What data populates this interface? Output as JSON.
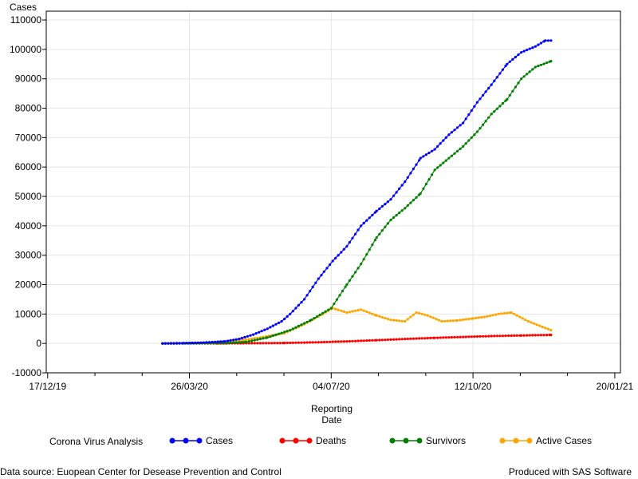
{
  "chart_data": {
    "type": "line",
    "ylabel": "Cases",
    "xlabel_lines": [
      "Reporting",
      "Date"
    ],
    "ylim": [
      -10000,
      113000
    ],
    "xlim": [
      "2019-12-16",
      "2021-01-24"
    ],
    "x_ticks": [
      {
        "date": "2019-12-17",
        "label": "17/12/19"
      },
      {
        "date": "2020-03-26",
        "label": "26/03/20"
      },
      {
        "date": "2020-07-04",
        "label": "04/07/20"
      },
      {
        "date": "2020-10-12",
        "label": "12/10/20"
      },
      {
        "date": "2021-01-20",
        "label": "20/01/21"
      }
    ],
    "y_ticks": [
      -10000,
      0,
      10000,
      20000,
      30000,
      40000,
      50000,
      60000,
      70000,
      80000,
      90000,
      100000,
      110000
    ],
    "grid": true,
    "legend_position": "bottom",
    "legend_title": "Corona Virus Analysis",
    "series": [
      {
        "name": "Cases",
        "color": "#0000ff",
        "points": [
          [
            "2020-03-07",
            0
          ],
          [
            "2020-03-22",
            100
          ],
          [
            "2020-04-05",
            300
          ],
          [
            "2020-04-20",
            700
          ],
          [
            "2020-04-30",
            1500
          ],
          [
            "2020-05-10",
            3000
          ],
          [
            "2020-05-20",
            5000
          ],
          [
            "2020-05-30",
            7500
          ],
          [
            "2020-06-05",
            10000
          ],
          [
            "2020-06-15",
            15000
          ],
          [
            "2020-06-25",
            22000
          ],
          [
            "2020-07-05",
            28000
          ],
          [
            "2020-07-15",
            33000
          ],
          [
            "2020-07-25",
            40000
          ],
          [
            "2020-08-05",
            45000
          ],
          [
            "2020-08-15",
            49000
          ],
          [
            "2020-08-25",
            55000
          ],
          [
            "2020-09-05",
            63000
          ],
          [
            "2020-09-15",
            66000
          ],
          [
            "2020-09-25",
            71000
          ],
          [
            "2020-10-05",
            75000
          ],
          [
            "2020-10-15",
            82000
          ],
          [
            "2020-10-25",
            88000
          ],
          [
            "2020-11-05",
            95000
          ],
          [
            "2020-11-15",
            99000
          ],
          [
            "2020-11-25",
            101000
          ],
          [
            "2020-12-02",
            103000
          ],
          [
            "2020-12-06",
            103000
          ]
        ]
      },
      {
        "name": "Deaths",
        "color": "#ff0000",
        "points": [
          [
            "2020-03-07",
            0
          ],
          [
            "2020-04-15",
            20
          ],
          [
            "2020-05-15",
            80
          ],
          [
            "2020-06-01",
            150
          ],
          [
            "2020-06-25",
            400
          ],
          [
            "2020-07-15",
            700
          ],
          [
            "2020-08-05",
            1100
          ],
          [
            "2020-08-25",
            1500
          ],
          [
            "2020-09-15",
            1900
          ],
          [
            "2020-10-05",
            2200
          ],
          [
            "2020-10-25",
            2500
          ],
          [
            "2020-11-15",
            2700
          ],
          [
            "2020-12-06",
            2900
          ]
        ]
      },
      {
        "name": "Survivors",
        "color": "#008000",
        "points": [
          [
            "2020-03-07",
            0
          ],
          [
            "2020-04-20",
            100
          ],
          [
            "2020-05-05",
            500
          ],
          [
            "2020-05-20",
            2000
          ],
          [
            "2020-06-05",
            4500
          ],
          [
            "2020-06-20",
            8000
          ],
          [
            "2020-07-04",
            12000
          ],
          [
            "2020-07-15",
            20000
          ],
          [
            "2020-07-25",
            27000
          ],
          [
            "2020-08-05",
            36000
          ],
          [
            "2020-08-15",
            42000
          ],
          [
            "2020-08-25",
            46000
          ],
          [
            "2020-09-05",
            51000
          ],
          [
            "2020-09-15",
            59000
          ],
          [
            "2020-09-25",
            63000
          ],
          [
            "2020-10-05",
            67000
          ],
          [
            "2020-10-15",
            72000
          ],
          [
            "2020-10-25",
            78000
          ],
          [
            "2020-11-05",
            83000
          ],
          [
            "2020-11-15",
            90000
          ],
          [
            "2020-11-25",
            94000
          ],
          [
            "2020-12-06",
            96000
          ]
        ]
      },
      {
        "name": "Active Cases",
        "color": "#ffa500",
        "points": [
          [
            "2020-03-07",
            0
          ],
          [
            "2020-04-10",
            200
          ],
          [
            "2020-05-01",
            1000
          ],
          [
            "2020-05-15",
            2000
          ],
          [
            "2020-06-01",
            3500
          ],
          [
            "2020-06-15",
            6500
          ],
          [
            "2020-06-28",
            10000
          ],
          [
            "2020-07-05",
            12000
          ],
          [
            "2020-07-15",
            10500
          ],
          [
            "2020-07-25",
            11500
          ],
          [
            "2020-08-05",
            9500
          ],
          [
            "2020-08-15",
            8000
          ],
          [
            "2020-08-25",
            7500
          ],
          [
            "2020-09-02",
            10500
          ],
          [
            "2020-09-10",
            9500
          ],
          [
            "2020-09-20",
            7500
          ],
          [
            "2020-10-01",
            7800
          ],
          [
            "2020-10-12",
            8500
          ],
          [
            "2020-10-20",
            9000
          ],
          [
            "2020-10-30",
            10000
          ],
          [
            "2020-11-08",
            10500
          ],
          [
            "2020-11-20",
            7500
          ],
          [
            "2020-12-06",
            4500
          ]
        ]
      }
    ]
  },
  "footer": {
    "left": "Data source: Euopean Center for Desease Prevention and Control",
    "right": "Produced with SAS Software"
  }
}
